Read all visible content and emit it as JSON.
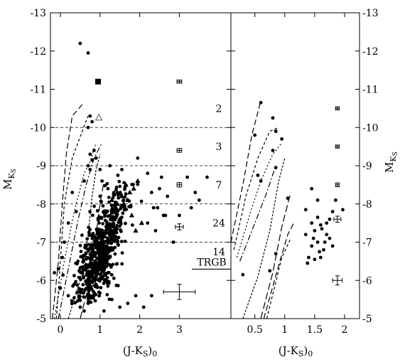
{
  "chart_data": [
    {
      "type": "scatter",
      "panel": "left",
      "xlabel": "(J-K_S)_0",
      "ylabel": "M_KS",
      "xlim": [
        -0.25,
        4.3
      ],
      "ylim": [
        -5,
        -13
      ],
      "y_inverted": true,
      "x_ticks": [
        "0",
        "1",
        "2",
        "3"
      ],
      "y_ticks": [
        "-5",
        "-6",
        "-7",
        "-8",
        "-9",
        "-10",
        "-11",
        "-12",
        "-13"
      ],
      "bin_boundaries": [
        -10,
        -9,
        -8,
        -7
      ],
      "bin_counts": [
        {
          "label": "2",
          "y": -10.5
        },
        {
          "label": "3",
          "y": -9.5
        },
        {
          "label": "7",
          "y": -8.5
        },
        {
          "label": "24",
          "y": -7.5
        },
        {
          "label": "14",
          "y": -6.75
        }
      ],
      "trgb": {
        "label": "TRGB",
        "y": -6.35
      },
      "error_bars": [
        {
          "x": 3.0,
          "y": -11.2,
          "xerr": 0.06,
          "yerr": 0.04
        },
        {
          "x": 3.0,
          "y": -9.4,
          "xerr": 0.06,
          "yerr": 0.05
        },
        {
          "x": 3.0,
          "y": -8.5,
          "xerr": 0.06,
          "yerr": 0.06
        },
        {
          "x": 3.0,
          "y": -7.4,
          "xerr": 0.1,
          "yerr": 0.08
        },
        {
          "x": 3.0,
          "y": -5.7,
          "xerr": 0.4,
          "yerr": 0.2
        }
      ],
      "triangles": [
        [
          1.55,
          -8.2
        ],
        [
          1.65,
          -8.5
        ],
        [
          1.6,
          -8.0
        ],
        [
          1.7,
          -8.1
        ],
        [
          1.75,
          -8.3
        ],
        [
          1.5,
          -7.6
        ],
        [
          1.8,
          -7.7
        ],
        [
          1.85,
          -8.4
        ],
        [
          1.4,
          -7.9
        ],
        [
          2.05,
          -7.5
        ],
        [
          1.3,
          -8.1
        ],
        [
          1.2,
          -7.4
        ],
        [
          1.95,
          -8.6
        ],
        [
          1.9,
          -7.3
        ]
      ],
      "special_markers": [
        {
          "shape": "square",
          "x": 0.95,
          "y": -11.2
        },
        {
          "shape": "open-triangle",
          "x": 0.97,
          "y": -10.25
        }
      ],
      "points": [
        [
          0.5,
          -12.2
        ],
        [
          0.7,
          -11.95
        ],
        [
          0.75,
          -10.3
        ],
        [
          0.8,
          -10.15
        ],
        [
          0.7,
          -10.0
        ],
        [
          0.85,
          -9.4
        ],
        [
          0.75,
          -9.3
        ],
        [
          0.8,
          -9.15
        ],
        [
          0.7,
          -9.0
        ],
        [
          0.75,
          -8.9
        ],
        [
          0.6,
          -8.6
        ],
        [
          1.0,
          -8.9
        ],
        [
          1.05,
          -8.6
        ],
        [
          1.25,
          -9.0
        ],
        [
          1.95,
          -9.2
        ],
        [
          2.2,
          -8.8
        ],
        [
          2.55,
          -8.7
        ],
        [
          2.7,
          -8.2
        ],
        [
          2.5,
          -8.4
        ],
        [
          2.3,
          -8.3
        ],
        [
          2.6,
          -7.7
        ],
        [
          2.35,
          -7.9
        ],
        [
          3.2,
          -8.7
        ],
        [
          3.4,
          -8.3
        ],
        [
          3.5,
          -8.1
        ],
        [
          3.3,
          -7.9
        ],
        [
          3.0,
          -7.7
        ],
        [
          3.7,
          -8.7
        ],
        [
          2.85,
          -7.0
        ],
        [
          2.2,
          -7.5
        ],
        [
          2.4,
          -7.3
        ],
        [
          2.65,
          -7.7
        ],
        [
          2.45,
          -7.9
        ],
        [
          0.3,
          -8.3
        ],
        [
          0.4,
          -7.8
        ],
        [
          0.2,
          -7.5
        ],
        [
          0.1,
          -7.0
        ],
        [
          0.05,
          -6.6
        ],
        [
          -0.05,
          -6.3
        ],
        [
          -0.15,
          -6.2
        ],
        [
          0.0,
          -5.8
        ],
        [
          0.2,
          -5.6
        ],
        [
          0.35,
          -5.9
        ],
        [
          0.5,
          -5.3
        ],
        [
          0.6,
          -5.2
        ],
        [
          0.7,
          -5.4
        ],
        [
          1.1,
          -5.2
        ],
        [
          1.3,
          -5.5
        ],
        [
          1.5,
          -5.3
        ],
        [
          1.7,
          -5.4
        ],
        [
          1.9,
          -5.6
        ],
        [
          2.1,
          -5.3
        ],
        [
          2.3,
          -5.6
        ],
        [
          0.9,
          -9.2
        ],
        [
          1.35,
          -8.3
        ],
        [
          1.45,
          -8.75
        ],
        [
          1.55,
          -8.9
        ],
        [
          1.2,
          -8.4
        ],
        [
          1.1,
          -7.8
        ],
        [
          1.0,
          -8.2
        ]
      ]
    },
    {
      "type": "scatter",
      "panel": "right",
      "xlabel": "(J-K_S)_0",
      "ylabel": "M_KS",
      "xlim": [
        0.1,
        2.25
      ],
      "ylim": [
        -5,
        -13
      ],
      "y_inverted": true,
      "x_ticks": [
        "0.5",
        "1",
        "1.5",
        "2"
      ],
      "y_ticks": [
        "-5",
        "-6",
        "-7",
        "-8",
        "-9",
        "-10",
        "-11",
        "-12",
        "-13"
      ],
      "error_bars": [
        {
          "x": 1.88,
          "y": -10.5,
          "xerr": 0.03,
          "yerr": 0.04
        },
        {
          "x": 1.88,
          "y": -9.5,
          "xerr": 0.03,
          "yerr": 0.04
        },
        {
          "x": 1.88,
          "y": -8.5,
          "xerr": 0.03,
          "yerr": 0.05
        },
        {
          "x": 1.88,
          "y": -7.6,
          "xerr": 0.06,
          "yerr": 0.08
        },
        {
          "x": 1.88,
          "y": -6.0,
          "xerr": 0.08,
          "yerr": 0.12
        }
      ],
      "points": [
        [
          0.6,
          -10.65
        ],
        [
          0.5,
          -9.8
        ],
        [
          0.8,
          -10.25
        ],
        [
          0.85,
          -9.9
        ],
        [
          0.95,
          -9.7
        ],
        [
          0.8,
          -9.4
        ],
        [
          0.85,
          -8.95
        ],
        [
          0.55,
          -8.75
        ],
        [
          0.6,
          -8.6
        ],
        [
          0.3,
          -6.15
        ],
        [
          0.75,
          -6.25
        ],
        [
          0.85,
          -6.7
        ],
        [
          1.05,
          -8.15
        ],
        [
          1.45,
          -8.4
        ],
        [
          1.55,
          -8.1
        ],
        [
          1.35,
          -7.85
        ],
        [
          1.75,
          -7.6
        ],
        [
          1.8,
          -7.8
        ],
        [
          1.97,
          -7.85
        ],
        [
          1.85,
          -8.1
        ],
        [
          1.5,
          -7.3
        ],
        [
          1.6,
          -7.45
        ],
        [
          1.7,
          -7.2
        ],
        [
          1.55,
          -7.0
        ],
        [
          1.45,
          -6.9
        ],
        [
          1.65,
          -6.8
        ],
        [
          1.75,
          -7.1
        ],
        [
          1.4,
          -6.6
        ],
        [
          1.6,
          -6.6
        ],
        [
          1.5,
          -6.55
        ],
        [
          1.8,
          -6.9
        ],
        [
          1.35,
          -7.2
        ],
        [
          1.55,
          -7.65
        ],
        [
          1.62,
          -7.35
        ],
        [
          1.45,
          -7.5
        ],
        [
          1.38,
          -6.45
        ],
        [
          1.7,
          -7.5
        ],
        [
          1.58,
          -6.75
        ],
        [
          1.48,
          -7.1
        ],
        [
          1.67,
          -7.0
        ]
      ]
    }
  ]
}
